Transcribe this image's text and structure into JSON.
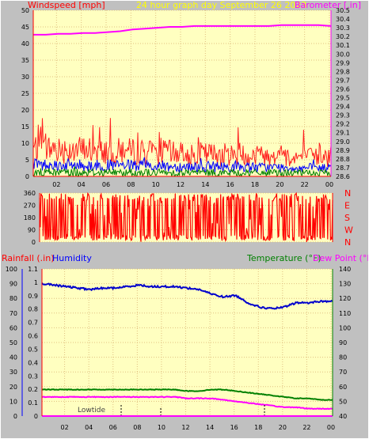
{
  "header": {
    "left_label": "Windspeed [mph]",
    "center_label": "24 hour graph day   September 26 2023",
    "right_label": "Barometer [.in]"
  },
  "colors": {
    "background": "#c0c0c0",
    "plot_bg": "#ffffc0",
    "grid": "#e0c080",
    "axis_red": "#ff0000",
    "windspeed": "#ff2020",
    "gust_blue": "#0000ff",
    "avg_green": "#008000",
    "barometer": "#ff00ff",
    "humidity": "#0000cc",
    "temperature": "#008000",
    "dewpoint": "#ff00ff",
    "title_yellow": "#ffff00"
  },
  "chart_data": [
    {
      "type": "line",
      "name": "wind-barometer",
      "x_ticks": [
        "02",
        "04",
        "06",
        "08",
        "10",
        "12",
        "14",
        "16",
        "18",
        "20",
        "22",
        "00"
      ],
      "y_left": {
        "label": "Windspeed [mph]",
        "ticks": [
          0,
          5,
          10,
          15,
          20,
          25,
          30,
          35,
          40,
          45,
          50
        ],
        "range": [
          0,
          50
        ]
      },
      "y_right": {
        "label": "Barometer [.in]",
        "ticks": [
          "28.6",
          "28.7",
          "28.8",
          "28.9",
          "29.0",
          "29.1",
          "29.2",
          "29.3",
          "29.4",
          "29.5",
          "29.6",
          "29.7",
          "29.8",
          "29.9",
          "30.0",
          "30.1",
          "30.2",
          "30.3",
          "30.4",
          "30.5"
        ],
        "range": [
          28.6,
          30.5
        ]
      },
      "barometer": [
        30.22,
        30.22,
        30.23,
        30.23,
        30.24,
        30.24,
        30.25,
        30.26,
        30.28,
        30.29,
        30.3,
        30.31,
        30.31,
        30.32,
        30.32,
        30.32,
        30.32,
        30.32,
        30.32,
        30.32,
        30.33,
        30.33,
        30.33,
        30.33,
        30.32
      ],
      "windspeed_peak_approx": 19,
      "windspeed_typical_range": [
        2,
        14
      ]
    },
    {
      "type": "line",
      "name": "wind-direction",
      "y_left": {
        "ticks": [
          0,
          90,
          180,
          270,
          360
        ],
        "range": [
          0,
          360
        ]
      },
      "y_right_labels": [
        "N",
        "W",
        "S",
        "E",
        "N"
      ]
    },
    {
      "type": "line",
      "name": "rain-humidity-temperature",
      "x_ticks": [
        "02",
        "04",
        "06",
        "08",
        "10",
        "12",
        "14",
        "16",
        "18",
        "20",
        "22",
        "00"
      ],
      "legend": {
        "rainfall": "Rainfall (.in)",
        "humidity": "Humidity",
        "temperature": "Temperature (°F)",
        "dewpoint": "Dew Point (°F)"
      },
      "y_humidity": {
        "ticks": [
          0,
          10,
          20,
          30,
          40,
          50,
          60,
          70,
          80,
          90,
          100
        ],
        "range": [
          0,
          100
        ]
      },
      "y_rain": {
        "ticks": [
          "0",
          "0.1",
          "0.2",
          "0.3",
          "0.4",
          "0.5",
          "0.6",
          "0.7",
          "0.8",
          "0.9",
          "1",
          "1.1"
        ],
        "range": [
          0,
          1.1
        ]
      },
      "y_temp": {
        "ticks": [
          40,
          50,
          60,
          70,
          80,
          90,
          100,
          110,
          120,
          130,
          140
        ],
        "range": [
          40,
          140
        ]
      },
      "humidity": [
        90,
        89,
        88,
        87,
        86,
        87,
        87,
        88,
        89,
        88,
        88,
        88,
        87,
        86,
        83,
        81,
        82,
        77,
        74,
        73,
        74,
        77,
        77,
        78,
        78
      ],
      "temperature": [
        58,
        58,
        58,
        58,
        58,
        58,
        58,
        58,
        58,
        58,
        58,
        58,
        57,
        57,
        58,
        58,
        57,
        56,
        55,
        54,
        53,
        52,
        52,
        51,
        51
      ],
      "dewpoint": [
        53,
        53,
        53,
        53,
        53,
        53,
        53,
        53,
        53,
        53,
        53,
        53,
        52,
        52,
        52,
        51,
        50,
        49,
        48,
        47,
        46,
        46,
        45,
        45,
        45
      ],
      "tide_label": "Lowtide"
    }
  ]
}
